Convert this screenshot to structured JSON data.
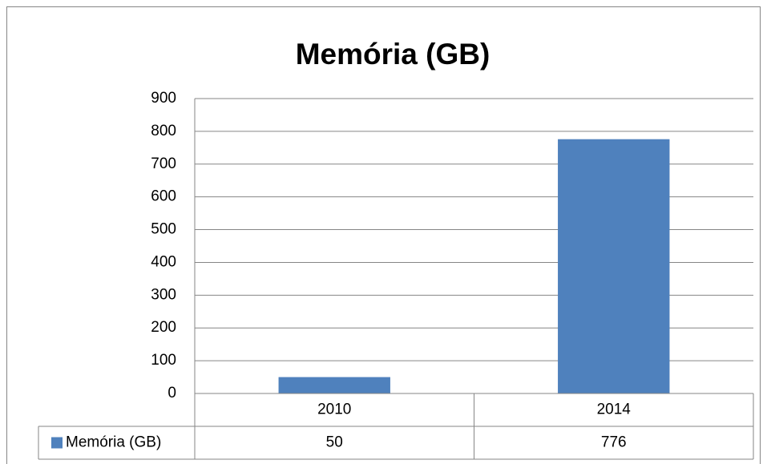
{
  "chart_data": {
    "type": "bar",
    "title": "Memória (GB)",
    "categories": [
      "2010",
      "2014"
    ],
    "series": [
      {
        "name": "Memória (GB)",
        "color": "#4f81bd",
        "values": [
          50,
          776
        ]
      }
    ],
    "ylim": [
      0,
      900
    ],
    "yticks": [
      0,
      100,
      200,
      300,
      400,
      500,
      600,
      700,
      800,
      900
    ],
    "grid": true,
    "data_table": true
  }
}
